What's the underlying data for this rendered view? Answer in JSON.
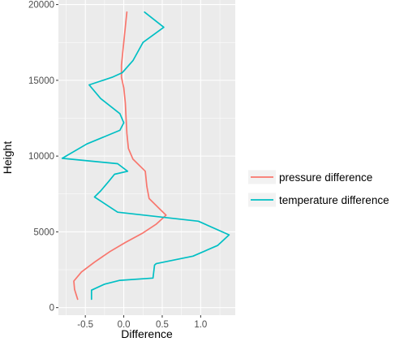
{
  "chart_data": {
    "type": "line",
    "xlabel": "Difference",
    "ylabel": "Height",
    "xlim": [
      -0.85,
      1.45
    ],
    "ylim": [
      -500,
      20300
    ],
    "x_ticks": [
      -0.5,
      0.0,
      0.5,
      1.0
    ],
    "x_tick_labels": [
      "-0.5",
      "0.0",
      "0.5",
      "1.0"
    ],
    "y_ticks": [
      0,
      5000,
      10000,
      15000,
      20000
    ],
    "y_tick_labels": [
      "0",
      "5000",
      "10000",
      "15000",
      "20000"
    ],
    "grid": true,
    "legend_position": "right",
    "series": [
      {
        "name": "pressure difference",
        "color": "#F8766D",
        "points": [
          [
            -0.6,
            550
          ],
          [
            -0.64,
            1200
          ],
          [
            -0.65,
            1750
          ],
          [
            -0.55,
            2350
          ],
          [
            -0.38,
            3000
          ],
          [
            -0.18,
            3700
          ],
          [
            0.02,
            4300
          ],
          [
            0.24,
            4900
          ],
          [
            0.42,
            5500
          ],
          [
            0.55,
            6100
          ],
          [
            0.45,
            6600
          ],
          [
            0.33,
            7200
          ],
          [
            0.3,
            8000
          ],
          [
            0.28,
            9000
          ],
          [
            0.12,
            9800
          ],
          [
            0.06,
            10500
          ],
          [
            0.04,
            11500
          ],
          [
            0.03,
            12500
          ],
          [
            0.02,
            13500
          ],
          [
            0.0,
            14500
          ],
          [
            -0.03,
            15200
          ],
          [
            -0.03,
            16000
          ],
          [
            -0.01,
            17000
          ],
          [
            0.01,
            18000
          ],
          [
            0.03,
            19000
          ],
          [
            0.04,
            19500
          ]
        ]
      },
      {
        "name": "temperature difference",
        "color": "#00BFC4",
        "points": [
          [
            -0.42,
            550
          ],
          [
            -0.42,
            1150
          ],
          [
            -0.25,
            1550
          ],
          [
            -0.05,
            1800
          ],
          [
            0.38,
            1950
          ],
          [
            0.4,
            2800
          ],
          [
            0.42,
            2900
          ],
          [
            0.9,
            3400
          ],
          [
            1.22,
            4100
          ],
          [
            1.37,
            4800
          ],
          [
            0.97,
            5700
          ],
          [
            -0.08,
            6300
          ],
          [
            -0.38,
            7300
          ],
          [
            -0.3,
            7700
          ],
          [
            -0.2,
            8300
          ],
          [
            -0.12,
            8800
          ],
          [
            0.05,
            9000
          ],
          [
            -0.08,
            9500
          ],
          [
            -0.8,
            9850
          ],
          [
            -0.48,
            10800
          ],
          [
            -0.05,
            11700
          ],
          [
            0.0,
            12200
          ],
          [
            -0.05,
            12800
          ],
          [
            -0.3,
            13800
          ],
          [
            -0.45,
            14700
          ],
          [
            -0.15,
            15200
          ],
          [
            -0.02,
            15500
          ],
          [
            0.12,
            16300
          ],
          [
            0.25,
            17500
          ],
          [
            0.52,
            18500
          ],
          [
            0.27,
            19500
          ]
        ]
      }
    ]
  }
}
